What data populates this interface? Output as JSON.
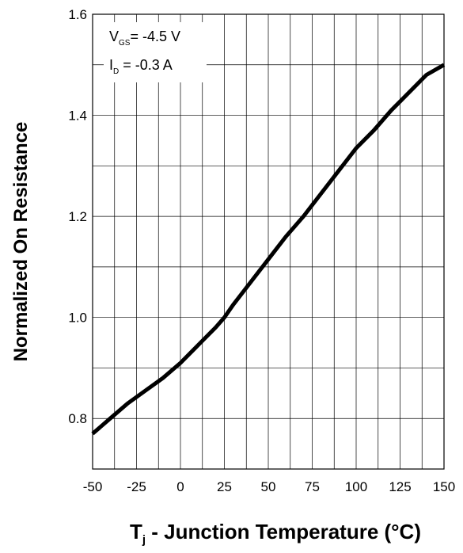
{
  "chart_data": {
    "type": "line",
    "x": [
      -50,
      -40,
      -30,
      -20,
      -10,
      0,
      10,
      20,
      25,
      30,
      40,
      50,
      60,
      70,
      80,
      90,
      100,
      110,
      120,
      130,
      140,
      150
    ],
    "y": [
      0.77,
      0.8,
      0.83,
      0.855,
      0.88,
      0.91,
      0.945,
      0.98,
      1.0,
      1.025,
      1.07,
      1.115,
      1.16,
      1.2,
      1.245,
      1.29,
      1.335,
      1.37,
      1.41,
      1.445,
      1.48,
      1.5
    ],
    "xlim": [
      -50,
      150
    ],
    "ylim": [
      0.7,
      1.6
    ],
    "x_ticks": [
      -50,
      -25,
      0,
      25,
      50,
      75,
      100,
      125,
      150
    ],
    "x_tick_labels": [
      "-50",
      "-25",
      "0",
      "25",
      "50",
      "75",
      "100",
      "125",
      "150"
    ],
    "y_ticks": [
      0.8,
      1.0,
      1.2,
      1.4,
      1.6
    ],
    "y_tick_labels": [
      "0.8",
      "1.0",
      "1.2",
      "1.4",
      "1.6"
    ],
    "ylabel": "Normalized On Resistance",
    "xlabel": {
      "main": "T",
      "sub": "j",
      "rest": " - Junction Temperature (°C)"
    },
    "grid": true,
    "annotation": {
      "line1": {
        "main": "V",
        "sub": "GS",
        "rest": "= -4.5 V"
      },
      "line2": {
        "main": "I",
        "sub": "D",
        "rest": " = -0.3 A"
      }
    },
    "line_color": "#000000"
  }
}
